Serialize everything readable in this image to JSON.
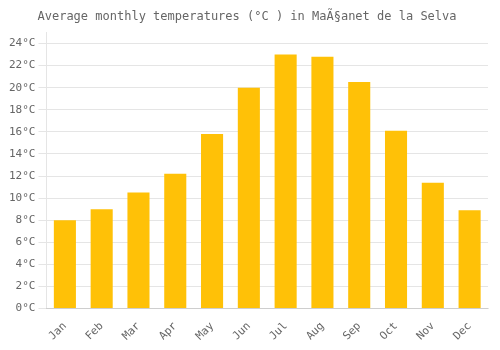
{
  "chart_data": {
    "type": "bar",
    "title": "Average monthly temperatures (°C ) in MaÃ§anet de la Selva",
    "categories": [
      "Jan",
      "Feb",
      "Mar",
      "Apr",
      "May",
      "Jun",
      "Jul",
      "Aug",
      "Sep",
      "Oct",
      "Nov",
      "Dec"
    ],
    "values": [
      8.0,
      9.0,
      10.5,
      12.2,
      15.8,
      20.0,
      23.0,
      22.8,
      20.5,
      16.1,
      11.4,
      8.9
    ],
    "color": "#FFC107",
    "ylim": [
      0,
      25
    ],
    "yticks": [
      {
        "value": 0,
        "label": "0°C"
      },
      {
        "value": 2,
        "label": "2°C"
      },
      {
        "value": 4,
        "label": "4°C"
      },
      {
        "value": 6,
        "label": "6°C"
      },
      {
        "value": 8,
        "label": "8°C"
      },
      {
        "value": 10,
        "label": "10°C"
      },
      {
        "value": 12,
        "label": "12°C"
      },
      {
        "value": 14,
        "label": "14°C"
      },
      {
        "value": 16,
        "label": "16°C"
      },
      {
        "value": 18,
        "label": "18°C"
      },
      {
        "value": 20,
        "label": "20°C"
      },
      {
        "value": 22,
        "label": "22°C"
      },
      {
        "value": 24,
        "label": "24°C"
      }
    ],
    "grid": true
  }
}
